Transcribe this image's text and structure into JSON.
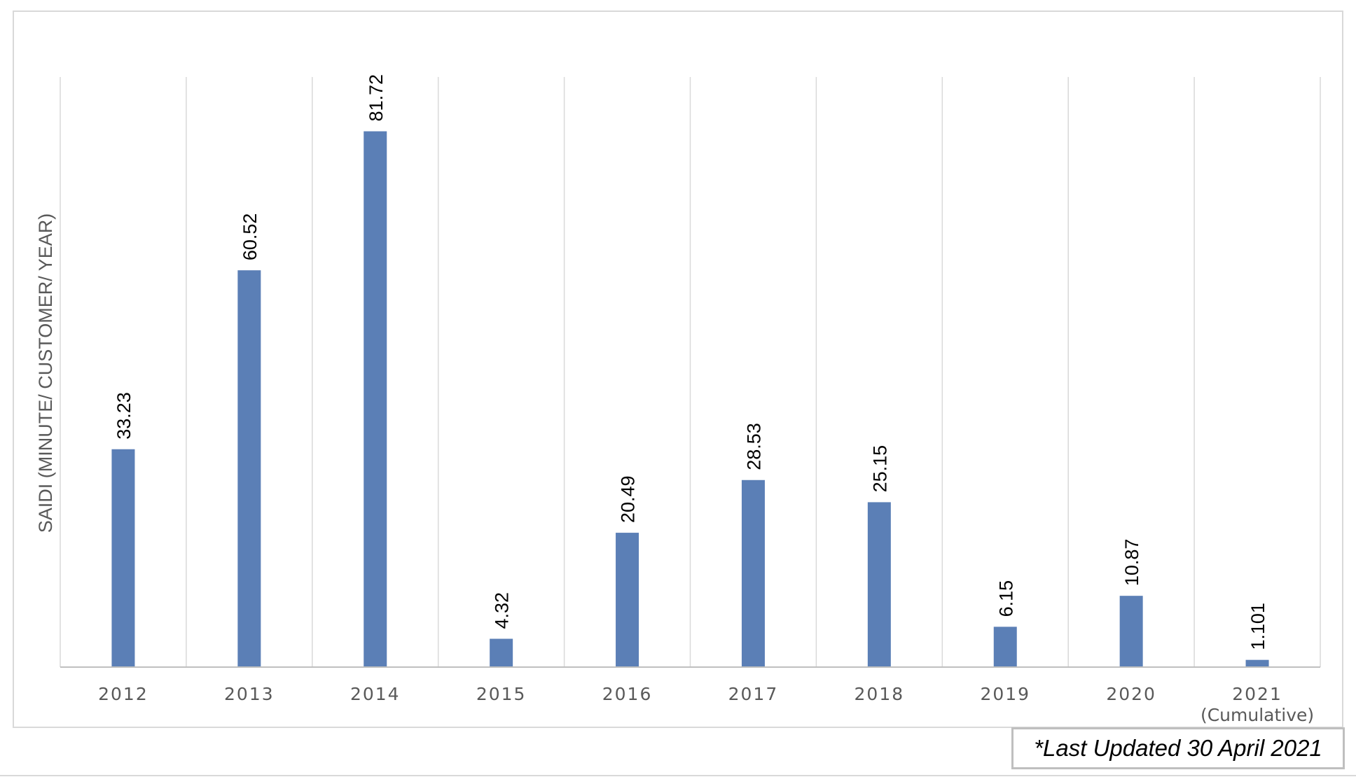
{
  "chart_data": {
    "type": "bar",
    "title": "",
    "xlabel": "",
    "ylabel": "SAIDI (MINUTE/ CUSTOMER/ YEAR)",
    "categories": [
      "2012",
      "2013",
      "2014",
      "2015",
      "2016",
      "2017",
      "2018",
      "2019",
      "2020",
      "2021"
    ],
    "category_sublabels": [
      "",
      "",
      "",
      "",
      "",
      "",
      "",
      "",
      "",
      "(Cumulative)"
    ],
    "values": [
      33.23,
      60.52,
      81.72,
      4.32,
      20.49,
      28.53,
      25.15,
      6.15,
      10.87,
      1.101
    ],
    "value_labels": [
      "33.23",
      "60.52",
      "81.72",
      "4.32",
      "20.49",
      "28.53",
      "25.15",
      "6.15",
      "10.87",
      "1.101"
    ],
    "ylim": [
      0,
      90
    ],
    "grid": "vertical",
    "legend": "none",
    "bar_color": "#5b7fb6",
    "grid_color": "#d9d9d9"
  },
  "note": "*Last Updated 30 April 2021"
}
